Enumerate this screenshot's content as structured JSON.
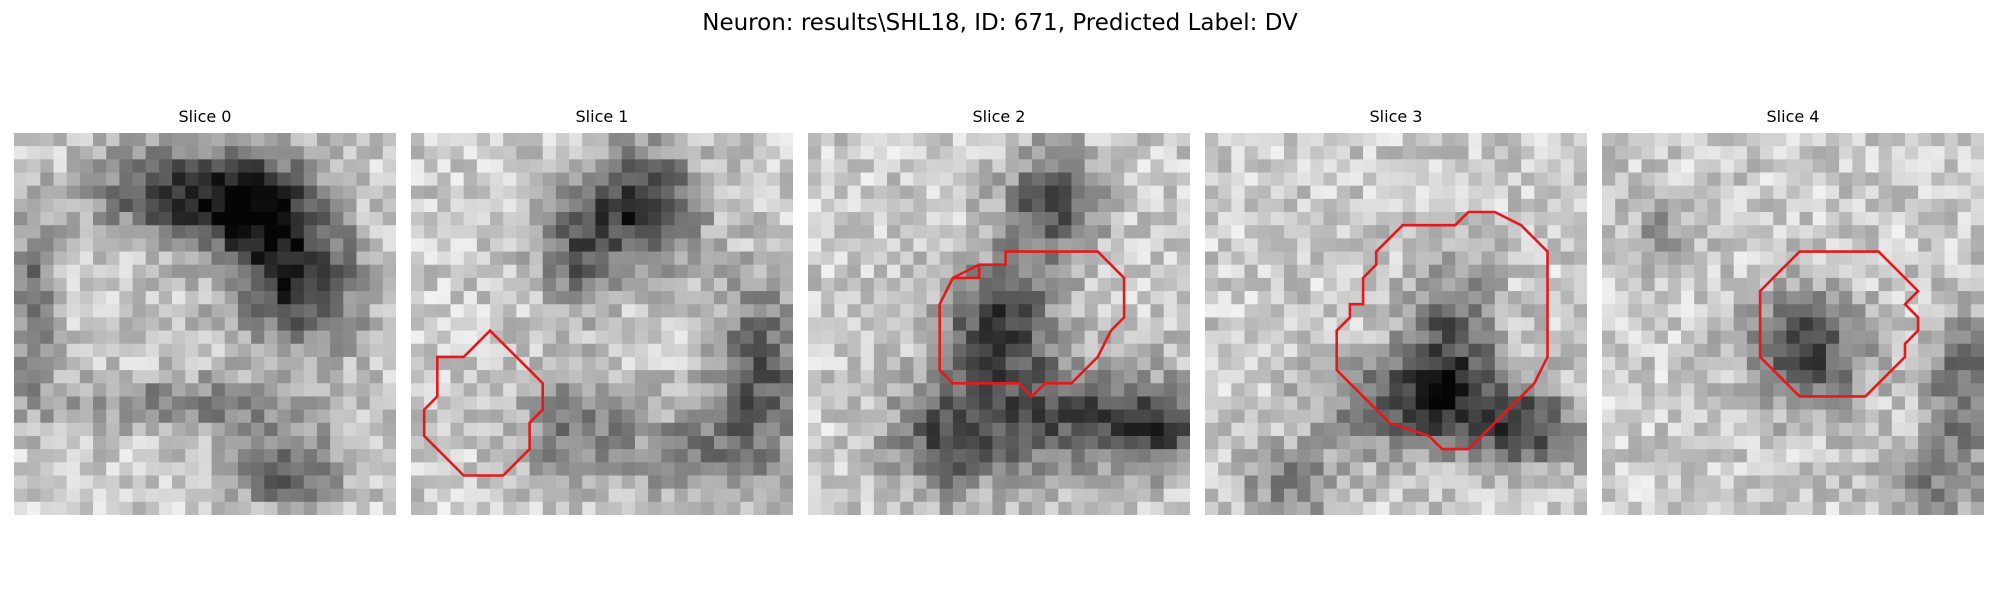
{
  "figure": {
    "title": "Neuron: results\\SHL18, ID: 671, Predicted Label: DV"
  },
  "contour_color": "#e31a1c",
  "panels": [
    {
      "label": "Slice 0",
      "has_contour": false
    },
    {
      "label": "Slice 1",
      "has_contour": true
    },
    {
      "label": "Slice 2",
      "has_contour": true
    },
    {
      "label": "Slice 3",
      "has_contour": true
    },
    {
      "label": "Slice 4",
      "has_contour": true
    }
  ]
}
